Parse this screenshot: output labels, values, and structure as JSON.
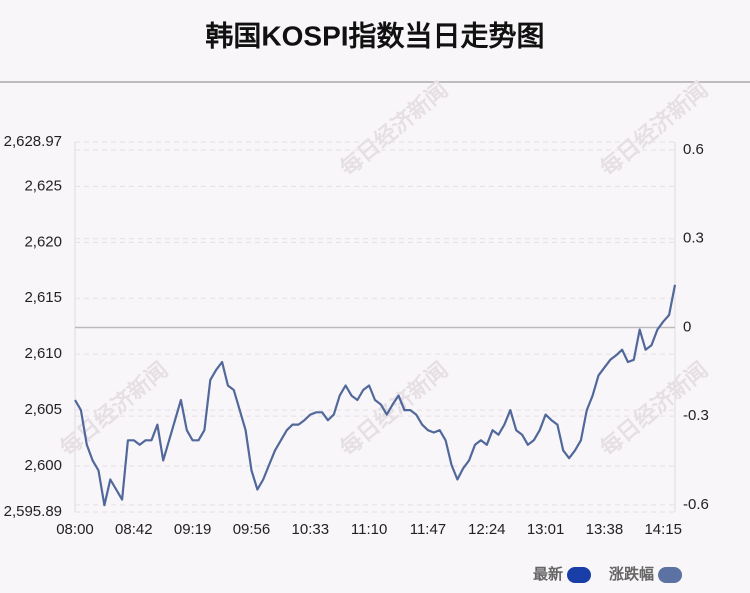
{
  "chart_data": {
    "type": "line",
    "title": "韩国KOSPI指数当日走势图",
    "watermark": "每日经济新闻",
    "categories": [
      "08:00",
      null,
      null,
      null,
      null,
      null,
      null,
      null,
      null,
      null,
      "08:42",
      null,
      null,
      null,
      null,
      null,
      null,
      null,
      null,
      null,
      "09:19",
      null,
      null,
      null,
      null,
      null,
      null,
      null,
      null,
      null,
      "09:56",
      null,
      null,
      null,
      null,
      null,
      null,
      null,
      null,
      null,
      "10:33",
      null,
      null,
      null,
      null,
      null,
      null,
      null,
      null,
      null,
      "11:10",
      null,
      null,
      null,
      null,
      null,
      null,
      null,
      null,
      null,
      "11:47",
      null,
      null,
      null,
      null,
      null,
      null,
      null,
      null,
      null,
      "12:24",
      null,
      null,
      null,
      null,
      null,
      null,
      null,
      null,
      null,
      "13:01",
      null,
      null,
      null,
      null,
      null,
      null,
      null,
      null,
      null,
      "13:38",
      null,
      null,
      null,
      null,
      null,
      null,
      null,
      null,
      null,
      "14:15",
      null,
      null
    ],
    "series": [
      {
        "name": "最新",
        "color": "#51689a",
        "values": [
          2605.9,
          2605,
          2601.9,
          2600.5,
          2599.6,
          2596.5,
          2598.8,
          2597.9,
          2597,
          2602.3,
          2602.3,
          2601.9,
          2602.3,
          2602.3,
          2603.7,
          2600.5,
          2602.3,
          2604.1,
          2605.9,
          2603.2,
          2602.3,
          2602.3,
          2603.2,
          2607.7,
          2608.6,
          2609.3,
          2607.2,
          2606.8,
          2605,
          2603.2,
          2599.6,
          2597.9,
          2598.8,
          2600.1,
          2601.4,
          2602.3,
          2603.2,
          2603.7,
          2603.7,
          2604.1,
          2604.6,
          2604.8,
          2604.8,
          2604.1,
          2604.6,
          2606.3,
          2607.2,
          2606.3,
          2605.9,
          2606.8,
          2607.2,
          2605.9,
          2605.5,
          2604.6,
          2605.5,
          2606.3,
          2605,
          2605,
          2604.6,
          2603.7,
          2603.2,
          2603,
          2603.2,
          2602.3,
          2600.1,
          2598.8,
          2599.8,
          2600.5,
          2601.9,
          2602.3,
          2601.9,
          2603.2,
          2602.8,
          2603.7,
          2605,
          2603.2,
          2602.8,
          2601.9,
          2602.3,
          2603.2,
          2604.6,
          2604.1,
          2603.7,
          2601.4,
          2600.7,
          2601.4,
          2602.3,
          2605,
          2606.3,
          2608.1,
          2608.8,
          2609.5,
          2609.9,
          2610.4,
          2609.3,
          2609.5,
          2612.2,
          2610.4,
          2610.8,
          2612.2,
          2612.9,
          2613.5,
          2616.2
        ]
      }
    ],
    "legend": [
      {
        "name": "最新",
        "color": "#1a3ea8"
      },
      {
        "name": "涨跌幅",
        "color": "#5b72a3"
      }
    ],
    "ylim": [
      2595.89,
      2628.97
    ],
    "yticks": [
      {
        "value": 2628.97,
        "label": "2,628.97"
      },
      {
        "value": 2625,
        "label": "2,625"
      },
      {
        "value": 2620,
        "label": "2,620"
      },
      {
        "value": 2615,
        "label": "2,615"
      },
      {
        "value": 2610,
        "label": "2,610"
      },
      {
        "value": 2605,
        "label": "2,605"
      },
      {
        "value": 2600,
        "label": "2,600"
      },
      {
        "value": 2595.89,
        "label": "2,595.89"
      }
    ],
    "y2lim": [
      -0.624,
      0.627
    ],
    "y2ticks": [
      0.6,
      0.3,
      0,
      -0.3,
      -0.6
    ],
    "grid": true
  }
}
